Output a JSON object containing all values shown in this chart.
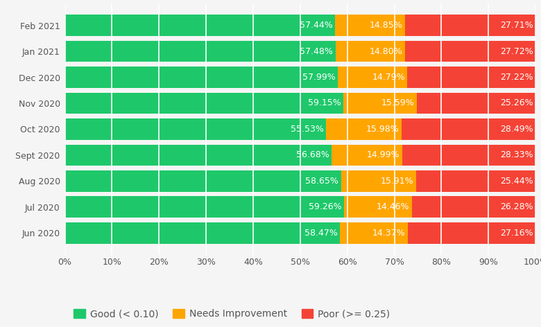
{
  "categories": [
    "Feb 2021",
    "Jan 2021",
    "Dec 2020",
    "Nov 2020",
    "Oct 2020",
    "Sept 2020",
    "Aug 2020",
    "Jul 2020",
    "Jun 2020"
  ],
  "good": [
    57.44,
    57.48,
    57.99,
    59.15,
    55.53,
    56.68,
    58.65,
    59.26,
    58.47
  ],
  "needs_improvement": [
    14.85,
    14.8,
    14.79,
    15.59,
    15.98,
    14.99,
    15.91,
    14.46,
    14.37
  ],
  "poor": [
    27.71,
    27.72,
    27.22,
    25.26,
    28.49,
    28.33,
    25.44,
    26.28,
    27.16
  ],
  "color_good": "#1ec86a",
  "color_needs": "#ffa500",
  "color_poor": "#f44336",
  "label_good": "Good (< 0.10)",
  "label_needs": "Needs Improvement",
  "label_poor": "Poor (>= 0.25)",
  "text_color": "#ffffff",
  "label_fontsize": 9,
  "tick_fontsize": 9,
  "legend_fontsize": 10,
  "bar_height": 0.82,
  "background_color": "#f5f5f5",
  "grid_color": "#ffffff"
}
